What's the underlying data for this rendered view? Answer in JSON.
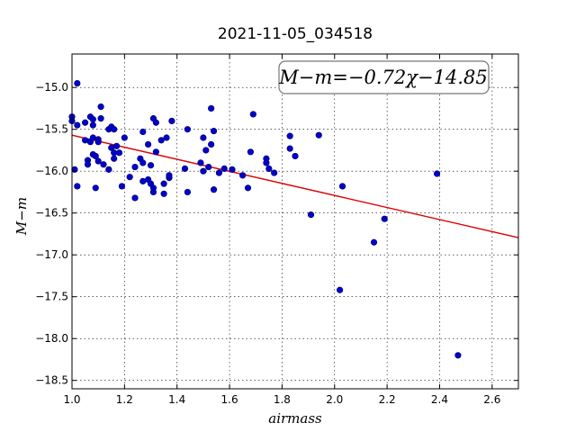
{
  "chart_data": {
    "type": "scatter",
    "title": "2021-11-05_034518",
    "xlabel": "airmass",
    "ylabel": "M−m",
    "xlim": [
      1.0,
      2.7
    ],
    "ylim": [
      -18.6,
      -14.6
    ],
    "x_ticks": [
      1.0,
      1.2,
      1.4,
      1.6,
      1.8,
      2.0,
      2.2,
      2.4,
      2.6
    ],
    "x_tick_labels": [
      "1.0",
      "1.2",
      "1.4",
      "1.6",
      "1.8",
      "2.0",
      "2.2",
      "2.4",
      "2.6"
    ],
    "y_ticks": [
      -15.0,
      -15.5,
      -16.0,
      -16.5,
      -17.0,
      -17.5,
      -18.0,
      -18.5
    ],
    "y_tick_labels": [
      "−15.0",
      "−15.5",
      "−16.0",
      "−16.5",
      "−17.0",
      "−17.5",
      "−18.0",
      "−18.5"
    ],
    "grid": true,
    "annotation": "M−m=−0.72χ−14.85",
    "colors": {
      "points": "#0000cc",
      "fit_line": "#dd0000"
    },
    "fit": {
      "slope": -0.72,
      "intercept": -14.85
    },
    "series": [
      {
        "points": [
          [
            1.0,
            -15.35
          ],
          [
            1.0,
            -15.4
          ],
          [
            1.02,
            -15.45
          ],
          [
            1.02,
            -14.95
          ],
          [
            1.01,
            -15.98
          ],
          [
            1.02,
            -16.18
          ],
          [
            1.05,
            -15.42
          ],
          [
            1.05,
            -15.63
          ],
          [
            1.06,
            -15.87
          ],
          [
            1.06,
            -15.92
          ],
          [
            1.07,
            -15.65
          ],
          [
            1.07,
            -15.35
          ],
          [
            1.08,
            -15.38
          ],
          [
            1.08,
            -15.45
          ],
          [
            1.08,
            -15.6
          ],
          [
            1.08,
            -15.8
          ],
          [
            1.09,
            -15.82
          ],
          [
            1.09,
            -16.2
          ],
          [
            1.1,
            -15.62
          ],
          [
            1.1,
            -15.65
          ],
          [
            1.1,
            -15.88
          ],
          [
            1.11,
            -15.23
          ],
          [
            1.11,
            -15.37
          ],
          [
            1.12,
            -15.92
          ],
          [
            1.14,
            -15.5
          ],
          [
            1.14,
            -15.98
          ],
          [
            1.15,
            -15.72
          ],
          [
            1.15,
            -15.47
          ],
          [
            1.16,
            -15.5
          ],
          [
            1.16,
            -15.78
          ],
          [
            1.16,
            -15.85
          ],
          [
            1.17,
            -15.7
          ],
          [
            1.18,
            -15.78
          ],
          [
            1.19,
            -16.18
          ],
          [
            1.2,
            -15.6
          ],
          [
            1.22,
            -16.07
          ],
          [
            1.24,
            -15.95
          ],
          [
            1.24,
            -16.32
          ],
          [
            1.26,
            -15.85
          ],
          [
            1.27,
            -15.9
          ],
          [
            1.27,
            -15.53
          ],
          [
            1.27,
            -16.12
          ],
          [
            1.29,
            -15.68
          ],
          [
            1.29,
            -16.1
          ],
          [
            1.3,
            -15.93
          ],
          [
            1.3,
            -16.15
          ],
          [
            1.31,
            -16.25
          ],
          [
            1.31,
            -16.2
          ],
          [
            1.31,
            -15.37
          ],
          [
            1.32,
            -15.42
          ],
          [
            1.32,
            -15.77
          ],
          [
            1.34,
            -15.63
          ],
          [
            1.35,
            -16.15
          ],
          [
            1.35,
            -16.27
          ],
          [
            1.36,
            -15.6
          ],
          [
            1.37,
            -16.08
          ],
          [
            1.37,
            -16.05
          ],
          [
            1.38,
            -15.4
          ],
          [
            1.43,
            -15.97
          ],
          [
            1.44,
            -15.5
          ],
          [
            1.44,
            -16.25
          ],
          [
            1.49,
            -15.9
          ],
          [
            1.5,
            -16.0
          ],
          [
            1.5,
            -15.6
          ],
          [
            1.51,
            -15.75
          ],
          [
            1.52,
            -15.95
          ],
          [
            1.53,
            -15.25
          ],
          [
            1.53,
            -15.68
          ],
          [
            1.54,
            -16.22
          ],
          [
            1.54,
            -15.52
          ],
          [
            1.56,
            -16.02
          ],
          [
            1.58,
            -15.97
          ],
          [
            1.61,
            -15.98
          ],
          [
            1.65,
            -16.05
          ],
          [
            1.67,
            -16.2
          ],
          [
            1.68,
            -15.77
          ],
          [
            1.69,
            -15.32
          ],
          [
            1.74,
            -15.85
          ],
          [
            1.74,
            -15.9
          ],
          [
            1.75,
            -15.97
          ],
          [
            1.77,
            -16.02
          ],
          [
            1.83,
            -15.58
          ],
          [
            1.83,
            -15.73
          ],
          [
            1.85,
            -15.82
          ],
          [
            1.91,
            -16.52
          ],
          [
            1.94,
            -15.57
          ],
          [
            2.02,
            -17.42
          ],
          [
            2.03,
            -16.18
          ],
          [
            2.15,
            -16.85
          ],
          [
            2.19,
            -16.57
          ],
          [
            2.39,
            -16.03
          ],
          [
            2.47,
            -18.2
          ]
        ]
      }
    ]
  }
}
